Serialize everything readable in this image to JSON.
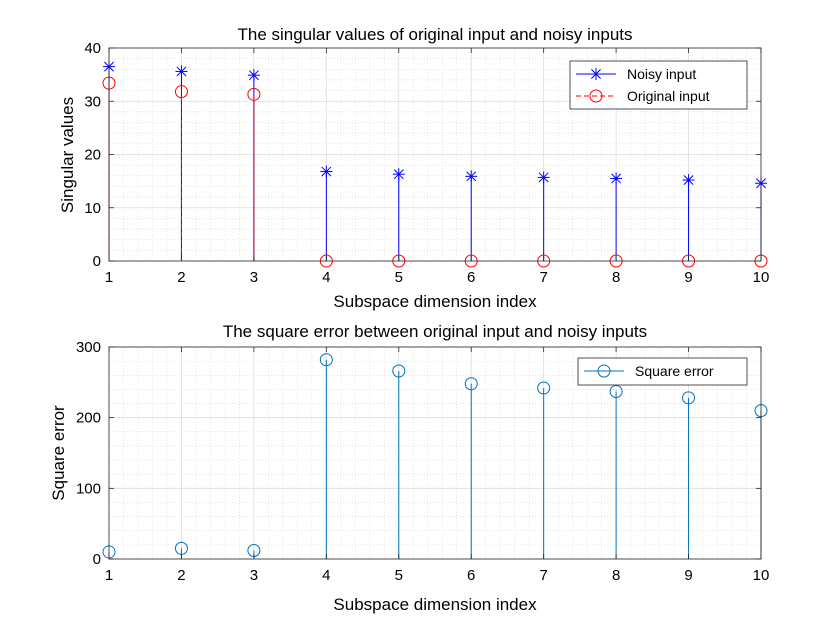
{
  "chart_data": [
    {
      "type": "stem",
      "title": "The singular values of original input and noisy inputs",
      "xlabel": "Subspace dimension index",
      "ylabel": "Singular values",
      "xlim": [
        1,
        10
      ],
      "ylim": [
        0,
        40
      ],
      "xticks": [
        1,
        2,
        3,
        4,
        5,
        6,
        7,
        8,
        9,
        10
      ],
      "yticks": [
        0,
        10,
        20,
        30,
        40
      ],
      "grid": "major and minor (dotted)",
      "legend_location": "top-right",
      "x": [
        1,
        2,
        3,
        4,
        5,
        6,
        7,
        8,
        9,
        10
      ],
      "series": [
        {
          "name": "Noisy input",
          "color": "#0000ff",
          "marker": "asterisk",
          "line": "solid",
          "values": [
            36.5,
            35.6,
            34.9,
            16.8,
            16.3,
            15.9,
            15.7,
            15.5,
            15.2,
            14.6
          ]
        },
        {
          "name": "Original input",
          "color": "#ff0000",
          "marker": "circle",
          "line": "dashed",
          "values": [
            33.4,
            31.8,
            31.3,
            0,
            0,
            0,
            0,
            0,
            0,
            0
          ]
        }
      ]
    },
    {
      "type": "stem",
      "title": "The square error between original input and noisy inputs",
      "xlabel": "Subspace dimension index",
      "ylabel": "Square error",
      "xlim": [
        1,
        10
      ],
      "ylim": [
        0,
        300
      ],
      "xticks": [
        1,
        2,
        3,
        4,
        5,
        6,
        7,
        8,
        9,
        10
      ],
      "yticks": [
        0,
        100,
        200,
        300
      ],
      "grid": "major and minor (dotted)",
      "legend_location": "top-right",
      "x": [
        1,
        2,
        3,
        4,
        5,
        6,
        7,
        8,
        9,
        10
      ],
      "series": [
        {
          "name": "Square error",
          "color": "#0072bd",
          "marker": "circle",
          "line": "solid",
          "values": [
            10,
            15,
            12,
            282,
            266,
            248,
            242,
            237,
            228,
            210
          ]
        }
      ]
    }
  ]
}
